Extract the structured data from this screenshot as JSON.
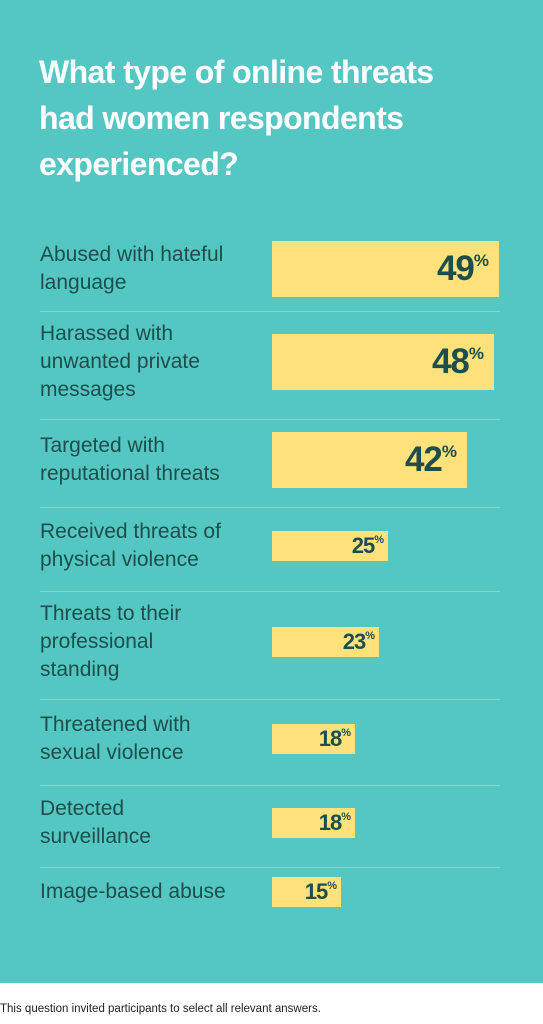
{
  "title": "What type of online threats\nhad women respondents\nexperienced?",
  "footnote": "This question invited participants to select all relevant answers.",
  "colors": {
    "background": "#54c7c3",
    "bar": "#fde27c",
    "text": "#1d4e4c",
    "title": "#ffffff"
  },
  "chart_data": {
    "type": "bar",
    "orientation": "horizontal",
    "unit": "%",
    "xlim": [
      0,
      49
    ],
    "categories": [
      "Abused with hateful\nlanguage",
      "Harassed with\nunwanted private\nmessages",
      "Targeted with\nreputational threats",
      "Received threats of\nphysical violence",
      "Threats to their\nprofessional\nstanding",
      "Threatened with\nsexual violence",
      "Detected\nsurveillance",
      "Image-based abuse"
    ],
    "values": [
      49,
      48,
      42,
      25,
      23,
      18,
      18,
      15
    ],
    "value_labels": [
      "49",
      "48",
      "42",
      "25",
      "23",
      "18",
      "18",
      "15"
    ]
  }
}
